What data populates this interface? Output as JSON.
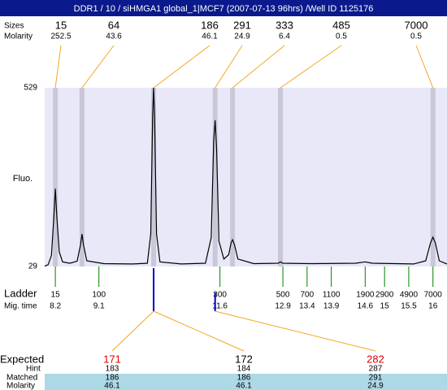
{
  "title": "DDR1 / 10 / siHMGA1 global_1|MCF7 (2007-07-13 96hrs) /Well ID 1125176",
  "peaks": {
    "size_label": "Sizes",
    "molarity_label": "Molarity",
    "sizes": [
      15,
      64,
      186,
      291,
      333,
      485,
      7000
    ],
    "molarity": [
      252.5,
      43.6,
      46.1,
      24.9,
      6.4,
      0.5,
      0.5
    ],
    "times": [
      8.2,
      8.75,
      10.23,
      11.5,
      11.86,
      12.85,
      16.0
    ]
  },
  "chart_data": {
    "type": "line",
    "ylabel": "Fluo.",
    "ylim": [
      29,
      529
    ],
    "yticks": [
      29,
      529
    ],
    "xlim": [
      7.98,
      16.29
    ],
    "color": "#000000",
    "background": "#e8e8f8",
    "band_color": "#c8c8d8",
    "x": [
      7.98,
      8.05,
      8.12,
      8.17,
      8.2,
      8.23,
      8.28,
      8.35,
      8.5,
      8.65,
      8.72,
      8.75,
      8.78,
      8.85,
      9.2,
      9.8,
      10.1,
      10.17,
      10.21,
      10.23,
      10.25,
      10.29,
      10.36,
      10.8,
      11.3,
      11.42,
      11.47,
      11.5,
      11.53,
      11.58,
      11.68,
      11.78,
      11.83,
      11.86,
      11.9,
      11.97,
      12.3,
      12.8,
      12.85,
      12.9,
      13.5,
      14.4,
      14.6,
      14.75,
      15.6,
      15.85,
      15.95,
      16.0,
      16.05,
      16.13,
      16.29
    ],
    "values": [
      30,
      34,
      60,
      170,
      247,
      170,
      70,
      42,
      38,
      44,
      90,
      120,
      90,
      45,
      37,
      36,
      38,
      120,
      450,
      529,
      450,
      120,
      42,
      36,
      38,
      110,
      380,
      438,
      360,
      100,
      50,
      62,
      95,
      104,
      90,
      50,
      37,
      38,
      42,
      38,
      37,
      38,
      42,
      38,
      36,
      45,
      95,
      111,
      95,
      45,
      36
    ]
  },
  "ladder": {
    "label": "Ladder",
    "time_label": "Mig. time",
    "color": "#008000",
    "sizes": [
      15,
      100,
      300,
      500,
      700,
      1100,
      1900,
      2900,
      4900,
      7000
    ],
    "times": [
      8.2,
      9.1,
      11.6,
      12.9,
      13.4,
      13.9,
      14.6,
      15,
      15.5,
      16
    ]
  },
  "expected": {
    "label": "Expected",
    "hint_label": "Hint",
    "matched_label": "Matched",
    "molarity_label": "Molarity",
    "values": [
      171,
      172,
      282
    ],
    "colors": [
      "#e00000",
      "#000000",
      "#e00000"
    ],
    "hint": [
      183,
      184,
      287
    ],
    "matched": [
      186,
      186,
      291
    ],
    "molarity": [
      46.1,
      46.1,
      24.9
    ]
  }
}
